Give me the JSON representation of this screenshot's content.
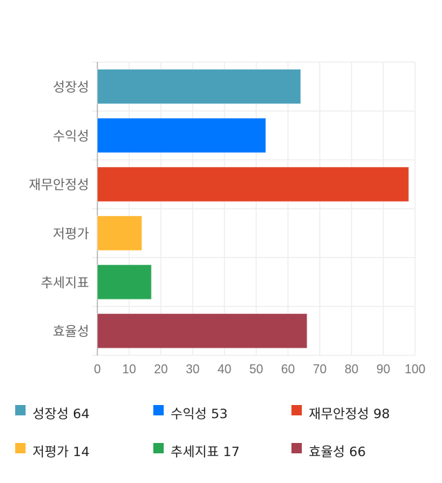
{
  "chart_data": {
    "type": "bar",
    "orientation": "horizontal",
    "categories": [
      "성장성",
      "수익성",
      "재무안정성",
      "저평가",
      "추세지표",
      "효율성"
    ],
    "values": [
      64,
      53,
      98,
      14,
      17,
      66
    ],
    "colors": [
      "#4aa0b9",
      "#0077ff",
      "#e24324",
      "#ffb833",
      "#29a654",
      "#a6404f"
    ],
    "xlim": [
      0,
      100
    ],
    "xticks": [
      0,
      10,
      20,
      30,
      40,
      50,
      60,
      70,
      80,
      90,
      100
    ],
    "grid": true,
    "legend_position": "bottom",
    "legend": [
      "성장성 64",
      "수익성 53",
      "재무안정성 98",
      "저평가 14",
      "추세지표 17",
      "효율성 66"
    ]
  }
}
